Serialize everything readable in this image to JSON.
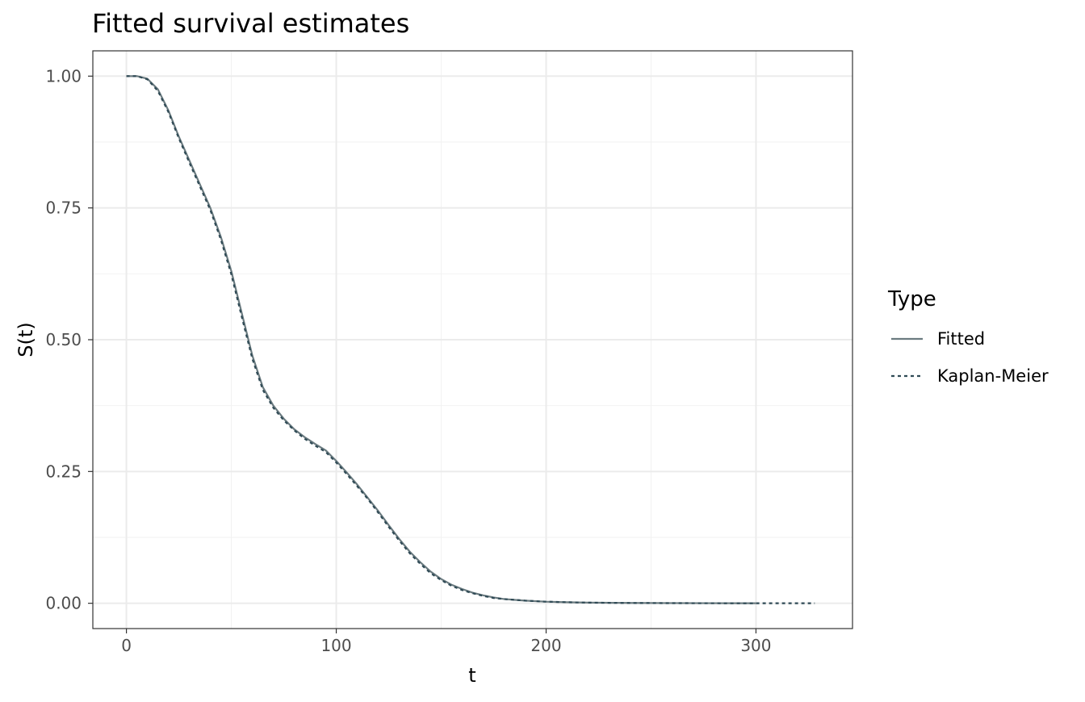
{
  "chart_data": {
    "type": "line",
    "title": "Fitted survival estimates",
    "xlabel": "t",
    "ylabel": "S(t)",
    "xlim": [
      -16,
      346
    ],
    "ylim": [
      -0.048,
      1.048
    ],
    "x_ticks": [
      0,
      100,
      200,
      300
    ],
    "x_tick_labels": [
      "0",
      "100",
      "200",
      "300"
    ],
    "y_ticks": [
      0,
      0.25,
      0.5,
      0.75,
      1
    ],
    "y_tick_labels": [
      "0.00",
      "0.25",
      "0.50",
      "0.75",
      "1.00"
    ],
    "grid": true,
    "legend": {
      "title": "Type",
      "placement": "right",
      "entries": [
        {
          "label": "Fitted",
          "style": "solid",
          "color": "#6b7b80"
        },
        {
          "label": "Kaplan-Meier",
          "style": "dashed",
          "color": "#2f4a55"
        }
      ]
    },
    "series": [
      {
        "name": "Fitted",
        "style": "solid",
        "color": "#6b7b80",
        "points": [
          [
            0,
            1.0
          ],
          [
            5,
            1.0
          ],
          [
            10,
            0.995
          ],
          [
            15,
            0.975
          ],
          [
            20,
            0.935
          ],
          [
            25,
            0.885
          ],
          [
            30,
            0.84
          ],
          [
            35,
            0.795
          ],
          [
            40,
            0.75
          ],
          [
            45,
            0.695
          ],
          [
            50,
            0.63
          ],
          [
            55,
            0.55
          ],
          [
            60,
            0.47
          ],
          [
            65,
            0.41
          ],
          [
            70,
            0.375
          ],
          [
            75,
            0.35
          ],
          [
            80,
            0.33
          ],
          [
            85,
            0.315
          ],
          [
            90,
            0.302
          ],
          [
            95,
            0.29
          ],
          [
            100,
            0.27
          ],
          [
            105,
            0.248
          ],
          [
            110,
            0.225
          ],
          [
            115,
            0.2
          ],
          [
            120,
            0.175
          ],
          [
            125,
            0.148
          ],
          [
            130,
            0.122
          ],
          [
            135,
            0.098
          ],
          [
            140,
            0.078
          ],
          [
            145,
            0.06
          ],
          [
            150,
            0.046
          ],
          [
            155,
            0.035
          ],
          [
            160,
            0.027
          ],
          [
            165,
            0.02
          ],
          [
            170,
            0.015
          ],
          [
            175,
            0.011
          ],
          [
            180,
            0.008
          ],
          [
            190,
            0.005
          ],
          [
            200,
            0.003
          ],
          [
            210,
            0.002
          ],
          [
            220,
            0.0013
          ],
          [
            240,
            0.0006
          ],
          [
            260,
            0.0003
          ],
          [
            280,
            0.0001
          ],
          [
            300,
            0.0
          ]
        ]
      },
      {
        "name": "Kaplan-Meier",
        "style": "dashed",
        "color": "#2f4a55",
        "points": [
          [
            0,
            1.0
          ],
          [
            5,
            1.0
          ],
          [
            10,
            0.994
          ],
          [
            15,
            0.972
          ],
          [
            20,
            0.932
          ],
          [
            25,
            0.882
          ],
          [
            30,
            0.836
          ],
          [
            35,
            0.791
          ],
          [
            40,
            0.746
          ],
          [
            45,
            0.69
          ],
          [
            50,
            0.624
          ],
          [
            55,
            0.543
          ],
          [
            60,
            0.464
          ],
          [
            65,
            0.405
          ],
          [
            70,
            0.371
          ],
          [
            75,
            0.347
          ],
          [
            80,
            0.328
          ],
          [
            85,
            0.312
          ],
          [
            90,
            0.299
          ],
          [
            95,
            0.287
          ],
          [
            100,
            0.267
          ],
          [
            105,
            0.245
          ],
          [
            110,
            0.222
          ],
          [
            115,
            0.198
          ],
          [
            120,
            0.172
          ],
          [
            125,
            0.145
          ],
          [
            130,
            0.119
          ],
          [
            135,
            0.095
          ],
          [
            140,
            0.075
          ],
          [
            145,
            0.057
          ],
          [
            150,
            0.044
          ],
          [
            155,
            0.033
          ],
          [
            160,
            0.025
          ],
          [
            165,
            0.019
          ],
          [
            170,
            0.014
          ],
          [
            175,
            0.01
          ],
          [
            180,
            0.008
          ],
          [
            190,
            0.005
          ],
          [
            200,
            0.003
          ],
          [
            210,
            0.002
          ],
          [
            220,
            0.0012
          ],
          [
            240,
            0.0005
          ],
          [
            260,
            0.0002
          ],
          [
            280,
            0.0001
          ],
          [
            300,
            0.0
          ],
          [
            328,
            0.0
          ]
        ]
      }
    ]
  }
}
